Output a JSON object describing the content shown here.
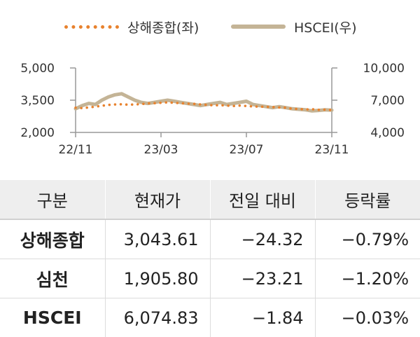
{
  "chart_data": {
    "type": "line",
    "legend_position": "top-center",
    "grid": false,
    "x_tick_labels": [
      "22/11",
      "23/03",
      "23/07",
      "23/11"
    ],
    "left_axis": {
      "ticks": [
        "5,000",
        "3,500",
        "2,000"
      ],
      "range": [
        2000,
        5000
      ]
    },
    "right_axis": {
      "ticks": [
        "10,000",
        "7,000",
        "4,000"
      ],
      "range": [
        4000,
        10000
      ]
    },
    "series": [
      {
        "name": "상해종합(좌)",
        "axis": "left",
        "style": "dotted",
        "color": "#e8822e",
        "values": [
          3150,
          3130,
          3160,
          3200,
          3240,
          3280,
          3300,
          3310,
          3290,
          3300,
          3320,
          3350,
          3360,
          3380,
          3400,
          3380,
          3360,
          3340,
          3330,
          3300,
          3280,
          3260,
          3270,
          3250,
          3230,
          3250,
          3230,
          3210,
          3200,
          3190,
          3180,
          3160,
          3150,
          3100,
          3090,
          3070,
          3080,
          3050,
          3060,
          3040
        ]
      },
      {
        "name": "HSCEI(우)",
        "axis": "right",
        "style": "solid",
        "color": "#c4b496",
        "values": [
          6200,
          6500,
          6700,
          6600,
          7000,
          7300,
          7500,
          7600,
          7300,
          7000,
          6800,
          6700,
          6800,
          6900,
          7000,
          6900,
          6800,
          6700,
          6600,
          6500,
          6600,
          6700,
          6800,
          6600,
          6700,
          6800,
          6900,
          6600,
          6500,
          6400,
          6300,
          6400,
          6300,
          6200,
          6150,
          6100,
          6000,
          6050,
          6100,
          6075
        ]
      }
    ]
  },
  "table": {
    "headers": [
      "구분",
      "현재가",
      "전일 대비",
      "등락률"
    ],
    "rows": [
      {
        "name": "상해종합",
        "price": "3,043.61",
        "change": "-24.32",
        "rate": "-0.79%"
      },
      {
        "name": "심천",
        "price": "1,905.80",
        "change": "-23.21",
        "rate": "-1.20%"
      },
      {
        "name": "HSCEI",
        "price": "6,074.83",
        "change": "-1.84",
        "rate": "-0.03%"
      }
    ]
  }
}
